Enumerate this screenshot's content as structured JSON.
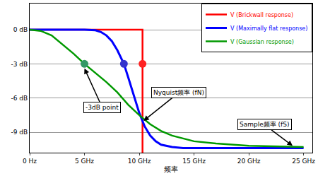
{
  "chart_data": {
    "type": "line",
    "x_label": "频率",
    "xlim": [
      0,
      25.8
    ],
    "xticks": [
      {
        "value": 0,
        "label": "0 Hz"
      },
      {
        "value": 5,
        "label": "5 GHz"
      },
      {
        "value": 10,
        "label": "10 GHz"
      },
      {
        "value": 15,
        "label": "15 GHz"
      },
      {
        "value": 20,
        "label": "20 GHz"
      },
      {
        "value": 25,
        "label": "25 GHz"
      }
    ],
    "ylim": [
      -10.8,
      2.3
    ],
    "yticks": [
      {
        "value": 0,
        "label": "0 dB"
      },
      {
        "value": -3,
        "label": "-3 dB"
      },
      {
        "value": -6,
        "label": "-6 dB"
      },
      {
        "value": -9,
        "label": "-9 dB"
      }
    ],
    "grid": true,
    "legend": "top-right",
    "series": [
      {
        "name": "V (Brickwall response)",
        "color": "#ff0000",
        "x": [
          0,
          10.3,
          10.3
        ],
        "values": [
          0,
          0,
          -10.8
        ]
      },
      {
        "name": "V (Maximally flat response)",
        "color": "#0000ff",
        "x": [
          0,
          5,
          6,
          6.5,
          7,
          7.5,
          8,
          8.6,
          9,
          9.5,
          10,
          10.5,
          11,
          11.5,
          12,
          13,
          14,
          16,
          25
        ],
        "values": [
          0,
          0,
          -0.05,
          -0.2,
          -0.5,
          -1,
          -1.8,
          -3,
          -4.2,
          -5.8,
          -7.3,
          -8.5,
          -9.3,
          -9.8,
          -10.1,
          -10.3,
          -10.4,
          -10.4,
          -10.4
        ]
      },
      {
        "name": "V (Gaussian response)",
        "color": "#009900",
        "x": [
          0,
          1,
          2,
          3,
          4,
          5,
          6,
          7,
          8,
          9,
          10,
          11,
          12,
          13,
          15,
          17,
          20,
          25
        ],
        "values": [
          0,
          -0.1,
          -0.5,
          -1.3,
          -2.1,
          -3,
          -3.8,
          -4.6,
          -5.5,
          -6.6,
          -7.5,
          -8.3,
          -8.9,
          -9.3,
          -9.8,
          -10.0,
          -10.2,
          -10.3
        ]
      }
    ],
    "points_3db": [
      {
        "x": 5,
        "y": -3,
        "color": "#339966"
      },
      {
        "x": 8.6,
        "y": -3,
        "color": "#3333cc"
      },
      {
        "x": 10.3,
        "y": -3,
        "color": "#ff2222"
      }
    ],
    "annotations": [
      {
        "text": "-3dB point",
        "x": 5,
        "y": -3.4
      },
      {
        "text": "Nyquist频率 (fN)",
        "x": 10.4,
        "y": -8.0
      },
      {
        "text": "Sample频率 (fS)",
        "x": 24,
        "y": -10.2
      }
    ]
  }
}
